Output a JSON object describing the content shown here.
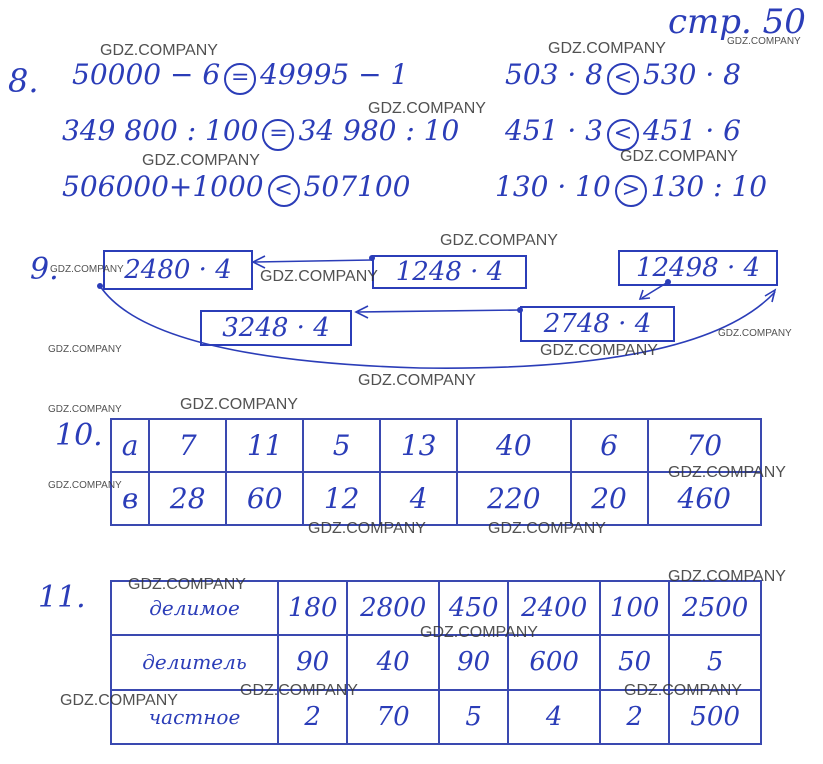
{
  "page_label": "стр. 50",
  "task8": {
    "number": "8.",
    "rows": [
      [
        "50000 − 6",
        "=",
        "49995 − 1"
      ],
      [
        "349 800 : 100",
        "=",
        "34 980 : 10"
      ],
      [
        "506000+1000",
        "<",
        "507100"
      ],
      [
        "503 · 8",
        "<",
        "530 · 8"
      ],
      [
        "451 · 3",
        "<",
        "451 · 6"
      ],
      [
        "130 · 10",
        ">",
        "130 : 10"
      ]
    ]
  },
  "task9": {
    "number": "9.",
    "boxes": [
      "2480 · 4",
      "1248 · 4",
      "12498 · 4",
      "3248 · 4",
      "2748 · 4"
    ]
  },
  "task10": {
    "number": "10.",
    "rows": [
      [
        "a",
        "7",
        "11",
        "5",
        "13",
        "40",
        "6",
        "70"
      ],
      [
        "в",
        "28",
        "60",
        "12",
        "4",
        "220",
        "20",
        "460"
      ]
    ]
  },
  "task11": {
    "number": "11.",
    "rows": [
      [
        "делимое",
        "180",
        "2800",
        "450",
        "2400",
        "100",
        "2500"
      ],
      [
        "делитель",
        "90",
        "40",
        "90",
        "600",
        "50",
        "5"
      ],
      [
        "частное",
        "2",
        "70",
        "5",
        "4",
        "2",
        "500"
      ]
    ]
  },
  "watermarks": [
    "GDZ.COMPANY",
    "GDZ.COMPANY",
    "GDZ.COMPANY",
    "GDZ.COMPANY",
    "GDZ.COMPANY",
    "GDZ.COMPANY",
    "GDZ.COMPANY",
    "GDZ.COMPANY",
    "GDZ.COMPANY",
    "GDZ.COMPANY",
    "GDZ.COMPANY",
    "GDZ.COMPANY",
    "GDZ.COMPANY",
    "GDZ.COMPANY",
    "GDZ.COMPANY",
    "GDZ.COMPANY",
    "GDZ.COMPANY",
    "GDZ.COMPANY",
    "GDZ.COMPANY",
    "GDZ.COMPANY",
    "GDZ.COMPANY",
    "GDZ.COMPANY",
    "GDZ.COMPANY",
    "GDZ.COMPANY",
    "GDZ.COMPANY"
  ]
}
